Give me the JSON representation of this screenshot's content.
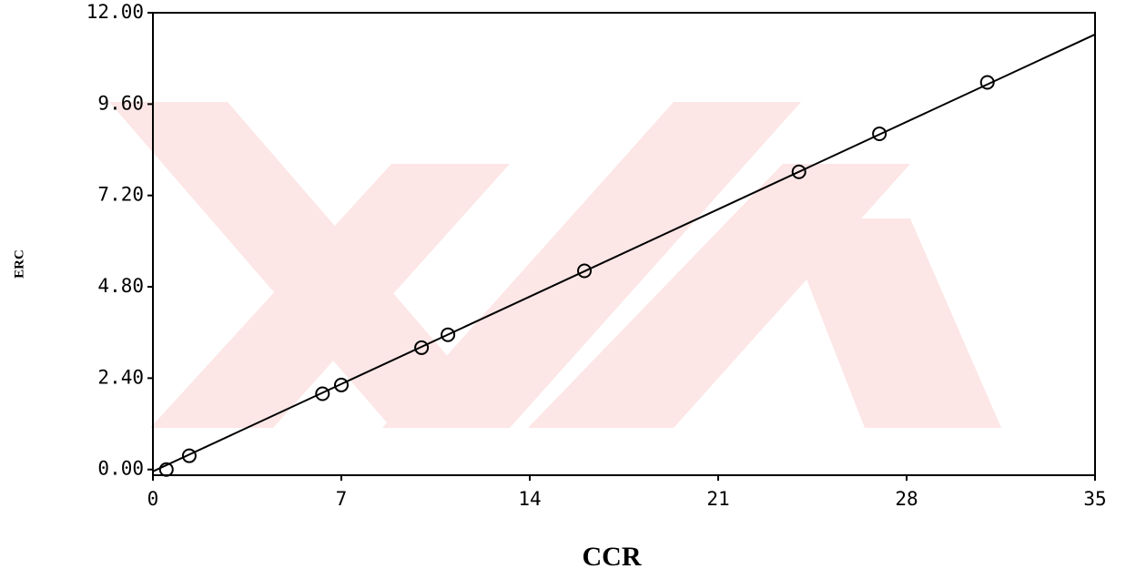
{
  "chart_data": {
    "type": "scatter",
    "x_label": "CCR",
    "y_label": "ERC",
    "xlim": [
      0,
      35
    ],
    "ylim": [
      -0.15,
      12.0
    ],
    "xticks": [
      0,
      7,
      14,
      21,
      28,
      35
    ],
    "yticks": [
      {
        "value": 0,
        "label": "0.00"
      },
      {
        "value": 2.4,
        "label": "2.40"
      },
      {
        "value": 4.8,
        "label": "4.80"
      },
      {
        "value": 7.2,
        "label": "7.20"
      },
      {
        "value": 9.6,
        "label": "9.60"
      },
      {
        "value": 12,
        "label": "12.00"
      }
    ],
    "series": [
      {
        "kind": "points",
        "color": "#000000",
        "x": [
          0.5,
          1.35,
          6.3,
          7.0,
          9.98,
          10.96,
          16.03,
          24.0,
          26.99,
          31.0
        ],
        "values": [
          0.0,
          0.36,
          1.99,
          2.22,
          3.2,
          3.54,
          5.22,
          7.82,
          8.82,
          10.17
        ]
      },
      {
        "kind": "line",
        "color": "#000000",
        "x": [
          0,
          35
        ],
        "values": [
          -0.05,
          11.43
        ]
      }
    ]
  }
}
